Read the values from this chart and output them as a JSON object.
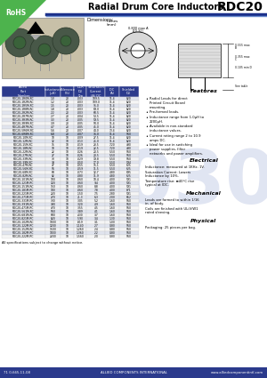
{
  "title": "Radial Drum Core Inductors",
  "part_number": "RDC20",
  "rohs_text": "RoHS",
  "table_headers": [
    "Allied\nPart\nNumber",
    "Inductance\n(μH)",
    "Tolerance\n(%)",
    "DCR\n(Ω)\nTyp",
    "Saturation\nCurrent\n(A) DC",
    "IDC\n(A)",
    "Shielded\n(Ω)"
  ],
  "table_data": [
    [
      "RDC20-1R0M-RC",
      "1.0",
      "20",
      ".003",
      "109.5",
      "11.4",
      "820"
    ],
    [
      "RDC20-1R2M-RC",
      "1.2",
      "20",
      ".003",
      "109.0",
      "11.4",
      "820"
    ],
    [
      "RDC20-1R5M-RC",
      "1.5",
      "20",
      ".003",
      "91.0",
      "11.4",
      "820"
    ],
    [
      "RDC20-1R8M-RC",
      "1.8",
      "20",
      ".003",
      "69.0",
      "11.4",
      "820"
    ],
    [
      "RDC20-2R2M-RC",
      "2.2",
      "20",
      ".003",
      "60.5",
      "11.4",
      "820"
    ],
    [
      "RDC20-2R7M-RC",
      "2.7",
      "20",
      ".004",
      "53.5",
      "11.4",
      "820"
    ],
    [
      "RDC20-3R3M-RC",
      "3.3",
      "20",
      ".005",
      "59.5",
      "11.4",
      "820"
    ],
    [
      "RDC20-3R9M-RC",
      "3.9",
      "20",
      ".005",
      "50.0",
      "11.4",
      "820"
    ],
    [
      "RDC20-4R7M-RC",
      "4.7",
      "20",
      ".005",
      "45.0",
      "11.4",
      "820"
    ],
    [
      "RDC20-5R6M-RC",
      "5.6",
      "20",
      ".007",
      "44.0",
      "73.4",
      "820"
    ],
    [
      "RDC20-6R8M-RC",
      "6.8",
      "20",
      ".007",
      "36.0",
      "11.4",
      "560"
    ],
    [
      "RDC20-10M-RC",
      "10",
      "10",
      ".009",
      "27.5",
      "11.4",
      "820"
    ],
    [
      "RDC20-12M-RC",
      "12",
      "10",
      ".013",
      "25.0",
      "11.4",
      "820"
    ],
    [
      "RDC20-15M-RC",
      "15",
      "10",
      ".019",
      "23.5",
      "7.20",
      "490"
    ],
    [
      "RDC20-18M-RC",
      "18",
      "10",
      ".019",
      "22.5",
      "7.20",
      "490"
    ],
    [
      "RDC20-22M-RC",
      "22",
      "10",
      ".026",
      "20.5",
      "5.50",
      "560"
    ],
    [
      "RDC20-27M-RC",
      "27",
      "10",
      ".026",
      "20.5",
      "5.50",
      "560"
    ],
    [
      "RDC20-33M-RC",
      "33",
      "10",
      ".029",
      "19.8",
      "5.50",
      "560"
    ],
    [
      "RDC20-39M-RC",
      "39",
      "10",
      ".050",
      "17.0",
      "5.50",
      "594"
    ],
    [
      "RDC20-47M-RC",
      "47",
      "10",
      ".055",
      "15.1",
      "5.50",
      "625"
    ],
    [
      "RDC20-56M-RC",
      "56",
      "10",
      ".059",
      "11.5",
      "5.50",
      "625"
    ],
    [
      "RDC20-68M-RC",
      "68",
      "10",
      ".073",
      "12.7",
      "4.80",
      "695"
    ],
    [
      "RDC20-82M-RC",
      "82",
      "10",
      ".080",
      "11.9",
      "4.80",
      "625"
    ],
    [
      "RDC20-101M-RC",
      "100",
      "10",
      ".060",
      "10.4",
      "4.00",
      "591"
    ],
    [
      "RDC20-121M-RC",
      "120",
      "10",
      ".060",
      "9.4",
      "4.00",
      "591"
    ],
    [
      "RDC20-151M-RC",
      "150",
      "10",
      ".060",
      "8.8",
      "4.00",
      "591"
    ],
    [
      "RDC20-181M-RC",
      "180",
      "10",
      ".060",
      "7.8",
      "4.00",
      "871"
    ],
    [
      "RDC20-221M-RC",
      "220",
      "10",
      ".150",
      "7.5",
      "2.80",
      "591"
    ],
    [
      "RDC20-271M-RC",
      "270",
      "10",
      "21.3",
      "6.3",
      "2.00",
      "652"
    ],
    [
      "RDC20-331M-RC",
      "330",
      "10",
      ".305",
      "5.2",
      "1.60",
      "560"
    ],
    [
      "RDC20-391M-RC",
      "390",
      "10",
      ".320",
      "4.9",
      "1.60",
      "560"
    ],
    [
      "RDC20-471M-RC",
      "470",
      "10",
      ".355",
      "4.5",
      "1.60",
      "560"
    ],
    [
      "RDC20-561M-RC",
      "560",
      "10",
      ".389",
      "4.1",
      "1.60",
      "560"
    ],
    [
      "RDC20-681M-RC",
      "680",
      "10",
      ".430",
      "3.7",
      "1.60",
      "560"
    ],
    [
      "RDC20-821M-RC",
      "820",
      "10",
      ".590",
      "3.4",
      "1.30",
      "560"
    ],
    [
      "RDC20-102M-RC",
      "1000",
      "10",
      ".819",
      "3.1",
      "1.00",
      "560"
    ],
    [
      "RDC20-122M-RC",
      "1200",
      "10",
      "1.140",
      "2.7",
      "0.80",
      "560"
    ],
    [
      "RDC20-152M-RC",
      "1500",
      "10",
      "1.260",
      "2.4",
      "0.80",
      "560"
    ],
    [
      "RDC20-182M-RC",
      "1800",
      "10",
      "1.360",
      "2.2",
      "0.80",
      "560"
    ],
    [
      "RDC20-222M-RC",
      "2200",
      "10",
      "1.560",
      "2.0",
      "0.80",
      "560"
    ]
  ],
  "features_title": "Features",
  "features": [
    "Radial Leads for direct Printed Circuit Board mounting.",
    "Pre-formed leads.",
    "Inductance range from 1.0μH to 2200μH.",
    "Available in non-standard inductance values.",
    "Current rating range 2 to 10.9 amps DC.",
    "Ideal for use in switching power supplies, filter networks and power amplifiers."
  ],
  "electrical_title": "Electrical",
  "electrical": [
    "Inductance: measured at 1KHz, 1V.",
    "Saturation Current: Lowers Inductance by 10%.",
    "Temperature rise: ≡40°C rise typical at IDC."
  ],
  "mechanical_title": "Mechanical",
  "mechanical": [
    "Leads are formed to within 1/16 in. of body.",
    "Coils are finished with UL/V/W1 rated sleeving."
  ],
  "physical_title": "Physical",
  "physical": [
    "Packaging: 25 pieces per bag."
  ],
  "footer_left": "71 0-665-11-08",
  "footer_center": "ALLIED COMPONENTS INTERNATIONAL",
  "footer_right": "www.alliedcomponentintl.com",
  "disclaimer": "All specifications subject to change without notice.",
  "header_bg": "#2b3a8c",
  "header_fg": "#ffffff",
  "row_alt1": "#e0e4ee",
  "row_alt2": "#f5f5f5",
  "row_highlight": "#b8c4d8",
  "rohs_bg": "#4a9e4a",
  "footer_bg": "#2b3a8c",
  "footer_fg": "#ffffff",
  "highlight_row": 10,
  "watermark_color": "#c8d0e8",
  "watermark_text": "3030"
}
